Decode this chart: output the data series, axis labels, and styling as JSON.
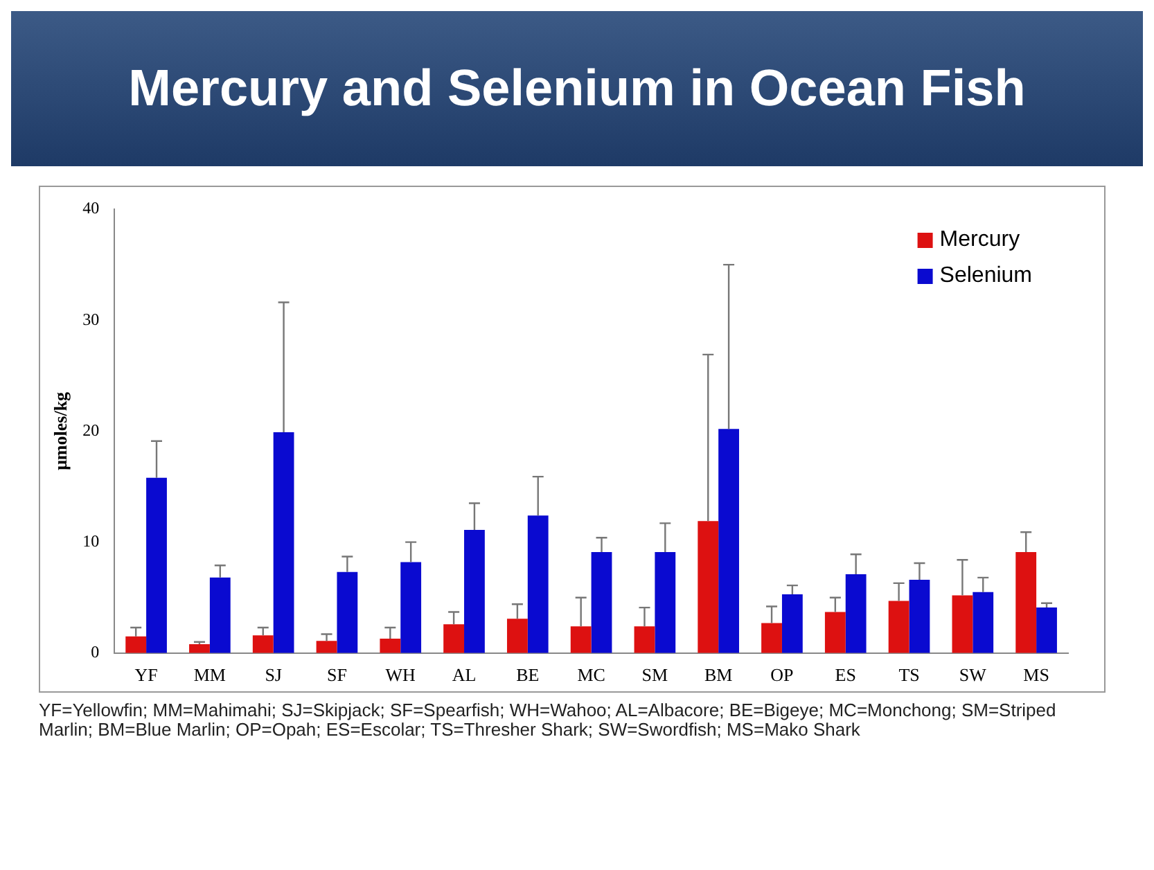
{
  "chart_data": {
    "type": "bar",
    "title": "Mercury and Selenium in Ocean Fish",
    "ylabel": "μmoles/kg",
    "categories": [
      "YF",
      "MM",
      "SJ",
      "SF",
      "WH",
      "AL",
      "BE",
      "MC",
      "SM",
      "BM",
      "OP",
      "ES",
      "TS",
      "SW",
      "MS"
    ],
    "series": [
      {
        "name": "Mercury",
        "color": "#dd1111",
        "values": [
          1.5,
          0.8,
          1.6,
          1.1,
          1.3,
          2.6,
          3.1,
          2.4,
          2.4,
          11.9,
          2.7,
          3.7,
          4.7,
          5.2,
          9.1
        ],
        "errors": [
          [
            1.5,
            2.3
          ],
          [
            0.8,
            1.0
          ],
          [
            1.6,
            2.3
          ],
          [
            1.1,
            1.7
          ],
          [
            1.3,
            2.3
          ],
          [
            2.6,
            3.7
          ],
          [
            3.1,
            4.4
          ],
          [
            2.4,
            5.0
          ],
          [
            2.4,
            4.1
          ],
          [
            11.9,
            26.9
          ],
          [
            2.7,
            4.2
          ],
          [
            3.7,
            5.0
          ],
          [
            4.7,
            6.3
          ],
          [
            5.2,
            8.4
          ],
          [
            9.1,
            10.9
          ]
        ]
      },
      {
        "name": "Selenium",
        "color": "#0a0ad0",
        "values": [
          15.8,
          6.8,
          19.9,
          7.3,
          8.2,
          11.1,
          12.4,
          9.1,
          9.1,
          20.2,
          5.3,
          7.1,
          6.6,
          5.5,
          4.1
        ],
        "errors": [
          [
            15.8,
            19.1
          ],
          [
            6.8,
            7.9
          ],
          [
            19.9,
            31.6
          ],
          [
            7.3,
            8.7
          ],
          [
            8.2,
            10.0
          ],
          [
            11.1,
            13.5
          ],
          [
            12.4,
            15.9
          ],
          [
            9.1,
            10.4
          ],
          [
            9.1,
            11.7
          ],
          [
            20.2,
            35.0
          ],
          [
            5.3,
            6.1
          ],
          [
            7.1,
            8.9
          ],
          [
            6.6,
            8.1
          ],
          [
            5.5,
            6.8
          ],
          [
            4.1,
            4.5
          ]
        ]
      }
    ],
    "ylim": [
      0,
      40
    ],
    "yticks": [
      0,
      10,
      20,
      30,
      40
    ],
    "grid": false,
    "legend": "top right",
    "annotations": [
      "YF=Yellowfin; MM=Mahimahi; SJ=Skipjack; SF=Spearfish; WH=Wahoo; AL=Albacore; BE=Bigeye; MC=Monchong; SM=Striped Marlin; BM=Blue Marlin; OP=Opah;  ES=Escolar; TS=Thresher Shark; SW=Swordfish; MS=Mako Shark"
    ]
  }
}
